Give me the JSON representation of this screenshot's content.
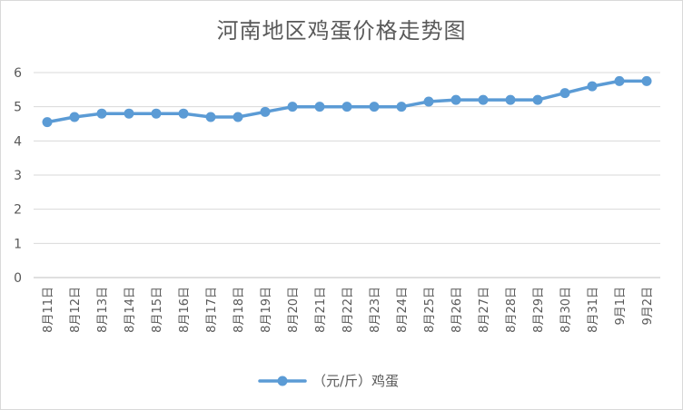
{
  "chart_data": {
    "type": "line",
    "title": "河南地区鸡蛋价格走势图",
    "categories": [
      "8月11日",
      "8月12日",
      "8月13日",
      "8月14日",
      "8月15日",
      "8月16日",
      "8月17日",
      "8月18日",
      "8月19日",
      "8月20日",
      "8月21日",
      "8月22日",
      "8月23日",
      "8月24日",
      "8月25日",
      "8月26日",
      "8月27日",
      "8月28日",
      "8月29日",
      "8月30日",
      "8月31日",
      "9月1日",
      "9月2日"
    ],
    "series": [
      {
        "name": "（元/斤）鸡蛋",
        "color": "#5b9bd5",
        "values": [
          4.55,
          4.7,
          4.8,
          4.8,
          4.8,
          4.8,
          4.7,
          4.7,
          4.85,
          5.0,
          5.0,
          5.0,
          5.0,
          5.0,
          5.15,
          5.2,
          5.2,
          5.2,
          5.2,
          5.4,
          5.6,
          5.75,
          5.75
        ]
      }
    ],
    "yticks": [
      0,
      1,
      2,
      3,
      4,
      5,
      6
    ],
    "ylim": [
      0,
      6
    ],
    "grid": true,
    "legend_position": "bottom"
  }
}
